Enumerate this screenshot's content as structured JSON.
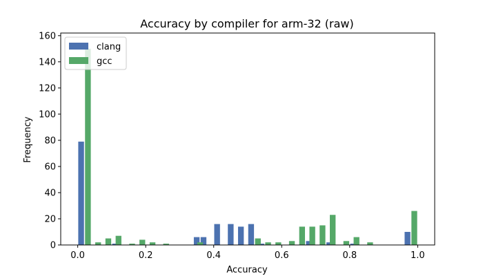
{
  "colors": {
    "clang": "#4c72b0",
    "gcc": "#55a868"
  },
  "chart_data": {
    "type": "bar",
    "title": "Accuracy by compiler for arm-32 (raw)",
    "xlabel": "Accuracy",
    "ylabel": "Frequency",
    "xlim": [
      -0.05,
      1.05
    ],
    "ylim": [
      0,
      162
    ],
    "xticks": [
      0.0,
      0.2,
      0.4,
      0.6,
      0.8,
      1.0
    ],
    "xtick_labels": [
      "0.0",
      "0.2",
      "0.4",
      "0.6",
      "0.8",
      "1.0"
    ],
    "yticks": [
      0,
      20,
      40,
      60,
      80,
      100,
      120,
      140,
      160
    ],
    "ytick_labels": [
      "0",
      "20",
      "40",
      "60",
      "80",
      "100",
      "120",
      "140",
      "160"
    ],
    "bin_width": 0.02,
    "grid": false,
    "legend_position": "upper-left",
    "series": [
      {
        "name": "clang",
        "color": "#4c72b0",
        "bins": [
          {
            "x": 0.01,
            "value": 79
          },
          {
            "x": 0.11,
            "value": 1
          },
          {
            "x": 0.35,
            "value": 6
          },
          {
            "x": 0.37,
            "value": 6
          },
          {
            "x": 0.41,
            "value": 16
          },
          {
            "x": 0.45,
            "value": 16
          },
          {
            "x": 0.48,
            "value": 14
          },
          {
            "x": 0.51,
            "value": 16
          },
          {
            "x": 0.54,
            "value": 1
          },
          {
            "x": 0.68,
            "value": 3
          },
          {
            "x": 0.74,
            "value": 2
          },
          {
            "x": 0.81,
            "value": 1
          },
          {
            "x": 0.97,
            "value": 10
          }
        ]
      },
      {
        "name": "gcc",
        "color": "#55a868",
        "bins": [
          {
            "x": 0.03,
            "value": 150
          },
          {
            "x": 0.06,
            "value": 2
          },
          {
            "x": 0.09,
            "value": 5
          },
          {
            "x": 0.12,
            "value": 7
          },
          {
            "x": 0.16,
            "value": 1
          },
          {
            "x": 0.19,
            "value": 4
          },
          {
            "x": 0.22,
            "value": 2
          },
          {
            "x": 0.26,
            "value": 1
          },
          {
            "x": 0.36,
            "value": 2
          },
          {
            "x": 0.53,
            "value": 5
          },
          {
            "x": 0.56,
            "value": 2
          },
          {
            "x": 0.59,
            "value": 2
          },
          {
            "x": 0.63,
            "value": 3
          },
          {
            "x": 0.66,
            "value": 14
          },
          {
            "x": 0.69,
            "value": 14
          },
          {
            "x": 0.72,
            "value": 15
          },
          {
            "x": 0.75,
            "value": 23
          },
          {
            "x": 0.79,
            "value": 3
          },
          {
            "x": 0.82,
            "value": 6
          },
          {
            "x": 0.86,
            "value": 2
          },
          {
            "x": 0.99,
            "value": 26
          }
        ]
      }
    ]
  }
}
